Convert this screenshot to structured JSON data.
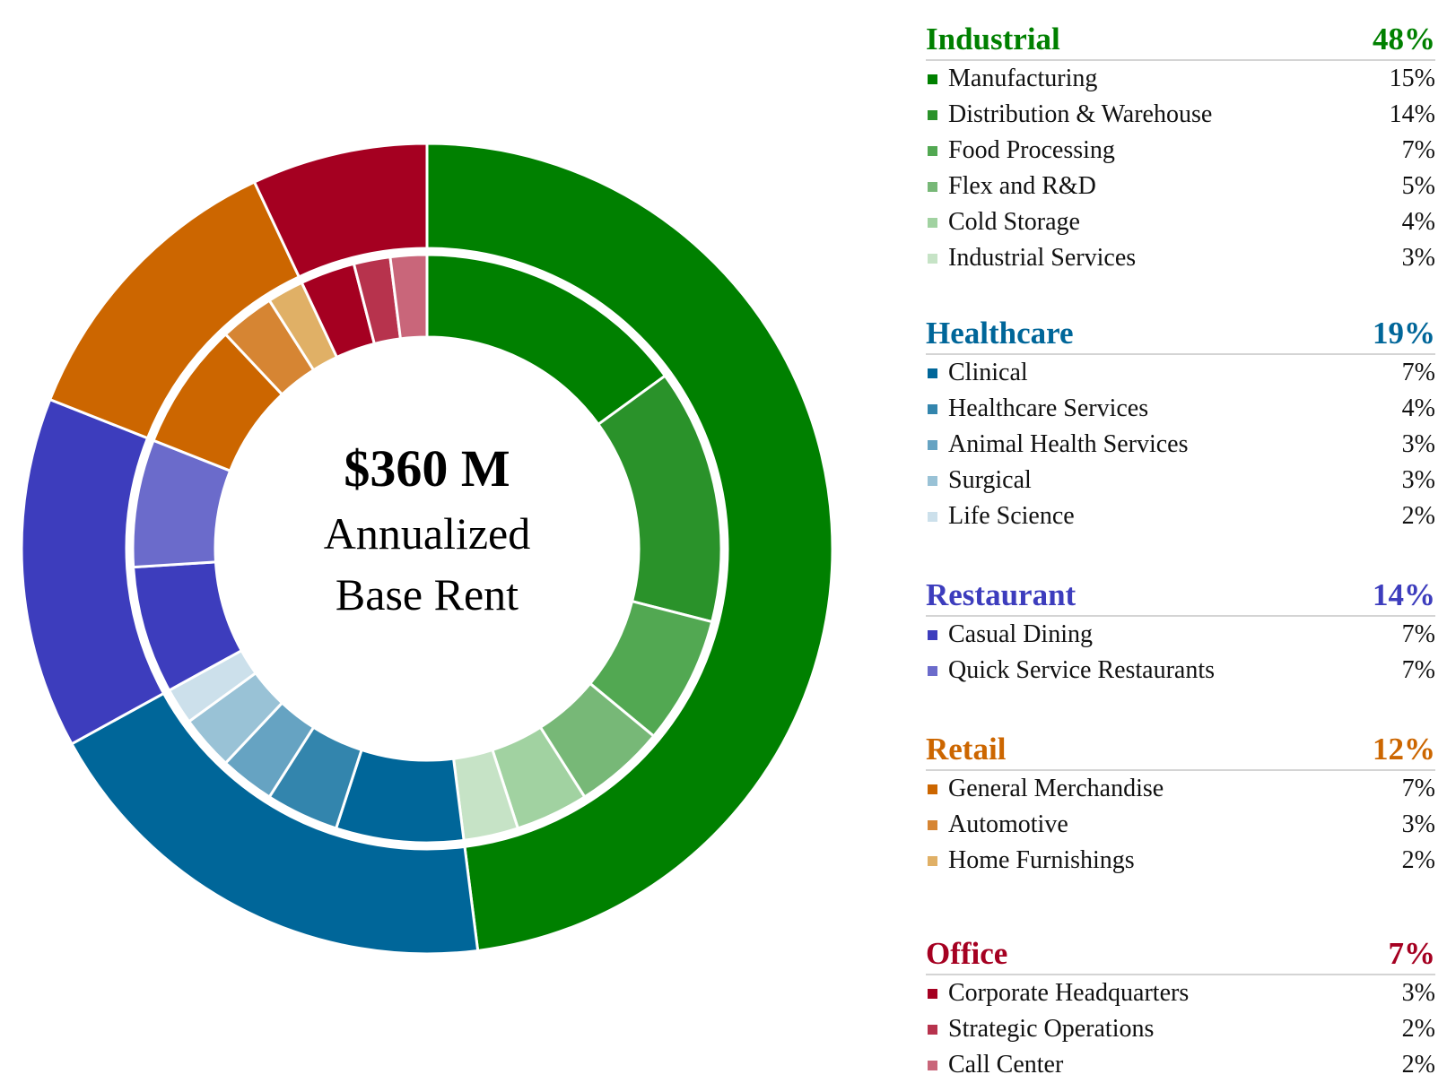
{
  "center": {
    "amount": "$360 M",
    "line1": "Annualized",
    "line2": "Base Rent"
  },
  "chart_data": {
    "type": "pie",
    "subtype": "nested-donut",
    "unit": "%",
    "groups": [
      {
        "name": "Industrial",
        "value": 48,
        "value_label": "48%",
        "color": "#008000",
        "items": [
          {
            "name": "Manufacturing",
            "value": 15,
            "value_label": "15%",
            "color": "#008000"
          },
          {
            "name": "Distribution & Warehouse",
            "value": 14,
            "value_label": "14%",
            "color": "#2a922a"
          },
          {
            "name": "Food Processing",
            "value": 7,
            "value_label": "7%",
            "color": "#52a852"
          },
          {
            "name": "Flex and R&D",
            "value": 5,
            "value_label": "5%",
            "color": "#77b877"
          },
          {
            "name": "Cold Storage",
            "value": 4,
            "value_label": "4%",
            "color": "#a1d2a1"
          },
          {
            "name": "Industrial Services",
            "value": 3,
            "value_label": "3%",
            "color": "#c6e3c6"
          }
        ]
      },
      {
        "name": "Healthcare",
        "value": 19,
        "value_label": "19%",
        "color": "#006699",
        "items": [
          {
            "name": "Clinical",
            "value": 7,
            "value_label": "7%",
            "color": "#006699"
          },
          {
            "name": "Healthcare Services",
            "value": 4,
            "value_label": "4%",
            "color": "#3385ad"
          },
          {
            "name": "Animal Health Services",
            "value": 3,
            "value_label": "3%",
            "color": "#66a3c2"
          },
          {
            "name": "Surgical",
            "value": 3,
            "value_label": "3%",
            "color": "#99c2d6"
          },
          {
            "name": "Life Science",
            "value": 2,
            "value_label": "2%",
            "color": "#cce0eb"
          }
        ]
      },
      {
        "name": "Restaurant",
        "value": 14,
        "value_label": "14%",
        "color": "#3d3dbd",
        "items": [
          {
            "name": "Casual Dining",
            "value": 7,
            "value_label": "7%",
            "color": "#3d3dbd"
          },
          {
            "name": "Quick Service Restaurants",
            "value": 7,
            "value_label": "7%",
            "color": "#6b6bcb"
          }
        ]
      },
      {
        "name": "Retail",
        "value": 12,
        "value_label": "12%",
        "color": "#cc6600",
        "items": [
          {
            "name": "General Merchandise",
            "value": 7,
            "value_label": "7%",
            "color": "#cc6600"
          },
          {
            "name": "Automotive",
            "value": 3,
            "value_label": "3%",
            "color": "#d68533"
          },
          {
            "name": "Home Furnishings",
            "value": 2,
            "value_label": "2%",
            "color": "#e0b066"
          }
        ]
      },
      {
        "name": "Office",
        "value": 7,
        "value_label": "7%",
        "color": "#a50021",
        "items": [
          {
            "name": "Corporate Headquarters",
            "value": 3,
            "value_label": "3%",
            "color": "#a50021"
          },
          {
            "name": "Strategic Operations",
            "value": 2,
            "value_label": "2%",
            "color": "#b7334d"
          },
          {
            "name": "Call Center",
            "value": 2,
            "value_label": "2%",
            "color": "#c9667a"
          }
        ]
      }
    ]
  }
}
